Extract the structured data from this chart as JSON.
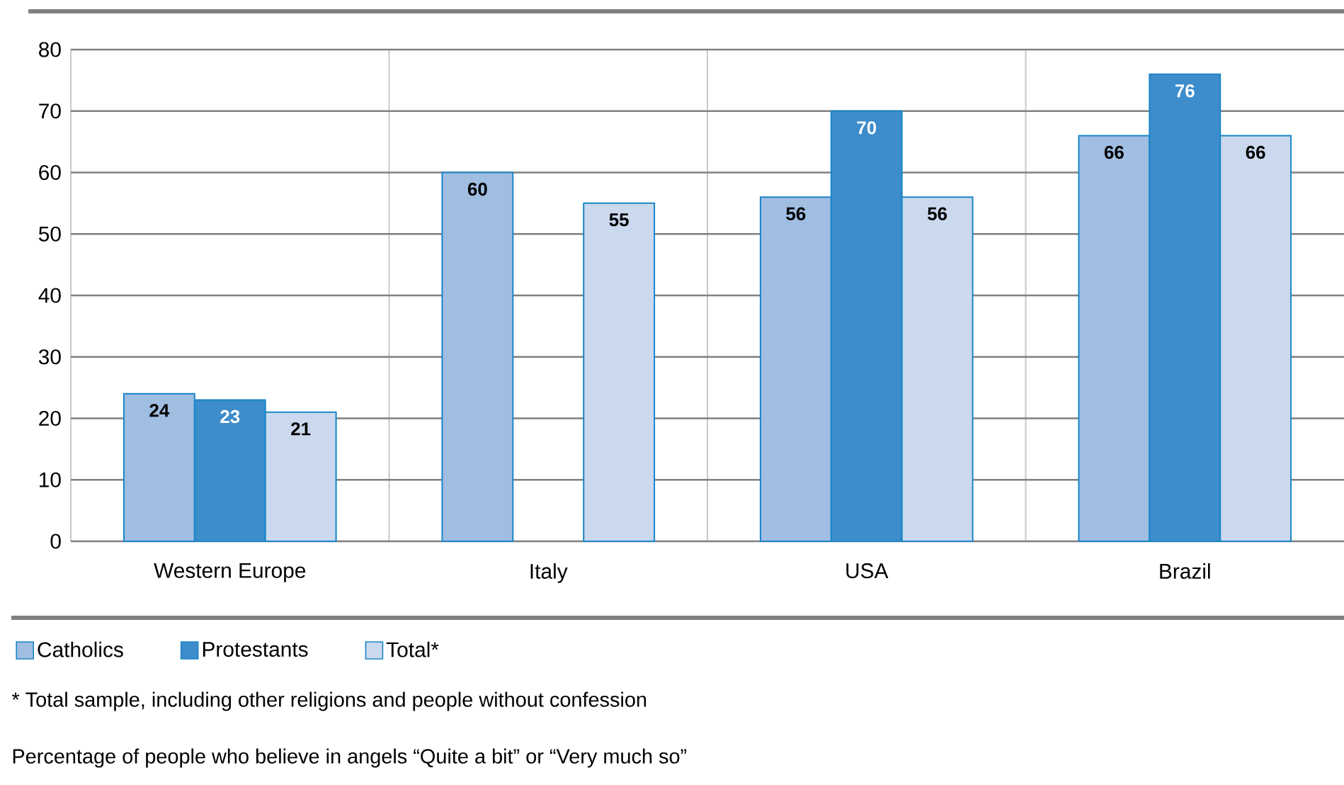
{
  "chart_data": {
    "type": "bar",
    "categories": [
      "Western Europe",
      "Italy",
      "USA",
      "Brazil"
    ],
    "series": [
      {
        "name": "Catholics",
        "color": "#a0bde2",
        "values": [
          24,
          60,
          56,
          66
        ]
      },
      {
        "name": "Protestants",
        "color": "#3d8ccb",
        "values": [
          23,
          null,
          70,
          76
        ]
      },
      {
        "name": "Total*",
        "color": "#cad9ee",
        "values": [
          21,
          55,
          56,
          66
        ]
      }
    ],
    "ylim": [
      0,
      80
    ],
    "yticks": [
      0,
      10,
      20,
      30,
      40,
      50,
      60,
      70,
      80
    ],
    "grid": true,
    "legend": "bottom left",
    "data_labels": true,
    "annotations": [
      "* Total sample, including other religions and people without confession",
      "Percentage of people who believe in angels “Quite a bit” or “Very much so”"
    ]
  }
}
